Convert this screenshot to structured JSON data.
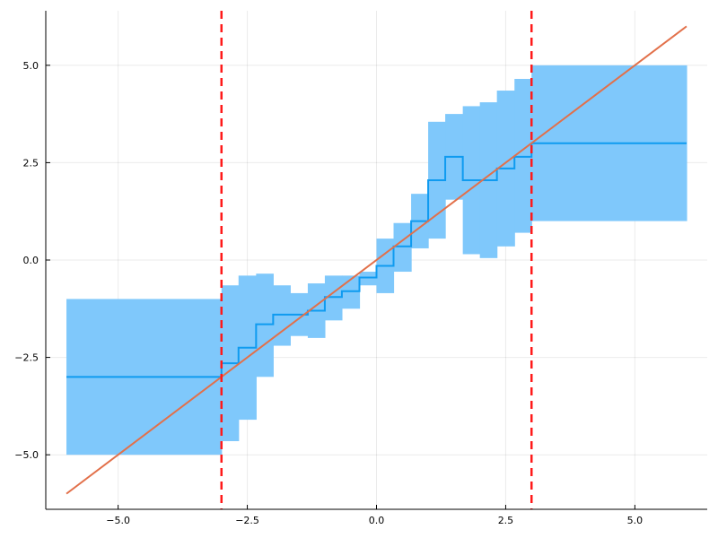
{
  "chart_data": {
    "type": "line",
    "title": "",
    "xlabel": "",
    "ylabel": "",
    "xlim": [
      -6.4,
      6.4
    ],
    "ylim": [
      -6.4,
      6.4
    ],
    "grid": true,
    "legend": "none",
    "x_ticks": [
      -5.0,
      -2.5,
      0.0,
      2.5,
      5.0
    ],
    "y_ticks": [
      -5.0,
      -2.5,
      0.0,
      2.5,
      5.0
    ],
    "x_tick_labels": [
      "−5.0",
      "−2.5",
      "0.0",
      "2.5",
      "5.0"
    ],
    "y_tick_labels": [
      "−5.0",
      "−2.5",
      "0.0",
      "2.5",
      "5.0"
    ],
    "colors": {
      "band": "#7fc8fb",
      "step": "#0f9bf0",
      "identity": "#e2704a",
      "vline": "#ff1a1a"
    },
    "band_steps": [
      {
        "x0": -6.0,
        "x1": -3.0,
        "lo": -5.0,
        "hi": -1.0
      },
      {
        "x0": -3.0,
        "x1": -2.67,
        "lo": -4.65,
        "hi": -0.65
      },
      {
        "x0": -2.67,
        "x1": -2.33,
        "lo": -4.1,
        "hi": -0.4
      },
      {
        "x0": -2.33,
        "x1": -2.0,
        "lo": -3.0,
        "hi": -0.35
      },
      {
        "x0": -2.0,
        "x1": -1.67,
        "lo": -2.2,
        "hi": -0.65
      },
      {
        "x0": -1.67,
        "x1": -1.33,
        "lo": -1.95,
        "hi": -0.85
      },
      {
        "x0": -1.33,
        "x1": -1.0,
        "lo": -2.0,
        "hi": -0.6
      },
      {
        "x0": -1.0,
        "x1": -0.67,
        "lo": -1.55,
        "hi": -0.4
      },
      {
        "x0": -0.67,
        "x1": -0.33,
        "lo": -1.25,
        "hi": -0.4
      },
      {
        "x0": -0.33,
        "x1": 0.0,
        "lo": -0.65,
        "hi": -0.3
      },
      {
        "x0": 0.0,
        "x1": 0.33,
        "lo": -0.85,
        "hi": 0.55
      },
      {
        "x0": 0.33,
        "x1": 0.67,
        "lo": -0.3,
        "hi": 0.95
      },
      {
        "x0": 0.67,
        "x1": 1.0,
        "lo": 0.3,
        "hi": 1.7
      },
      {
        "x0": 1.0,
        "x1": 1.33,
        "lo": 0.55,
        "hi": 3.55
      },
      {
        "x0": 1.33,
        "x1": 1.67,
        "lo": 1.55,
        "hi": 3.75
      },
      {
        "x0": 1.67,
        "x1": 2.0,
        "lo": 0.15,
        "hi": 3.95
      },
      {
        "x0": 2.0,
        "x1": 2.33,
        "lo": 0.05,
        "hi": 4.05
      },
      {
        "x0": 2.33,
        "x1": 2.67,
        "lo": 0.35,
        "hi": 4.35
      },
      {
        "x0": 2.67,
        "x1": 3.0,
        "lo": 0.7,
        "hi": 4.65
      },
      {
        "x0": 3.0,
        "x1": 6.0,
        "lo": 1.0,
        "hi": 5.0
      }
    ],
    "step_series": {
      "x": [
        -6.0,
        -3.0,
        -2.67,
        -2.33,
        -2.0,
        -1.67,
        -1.33,
        -1.0,
        -0.67,
        -0.33,
        0.0,
        0.33,
        0.67,
        1.0,
        1.33,
        1.67,
        2.0,
        2.33,
        2.67,
        3.0,
        6.0
      ],
      "y": [
        -3.0,
        -2.65,
        -2.25,
        -1.65,
        -1.4,
        -1.4,
        -1.3,
        -0.95,
        -0.8,
        -0.45,
        -0.15,
        0.35,
        1.0,
        2.05,
        2.65,
        2.05,
        2.05,
        2.35,
        2.65,
        3.0,
        3.0
      ]
    },
    "identity_line": {
      "x": [
        -6.0,
        6.0
      ],
      "y": [
        -6.0,
        6.0
      ]
    },
    "vertical_lines": [
      -3.0,
      3.0
    ]
  }
}
